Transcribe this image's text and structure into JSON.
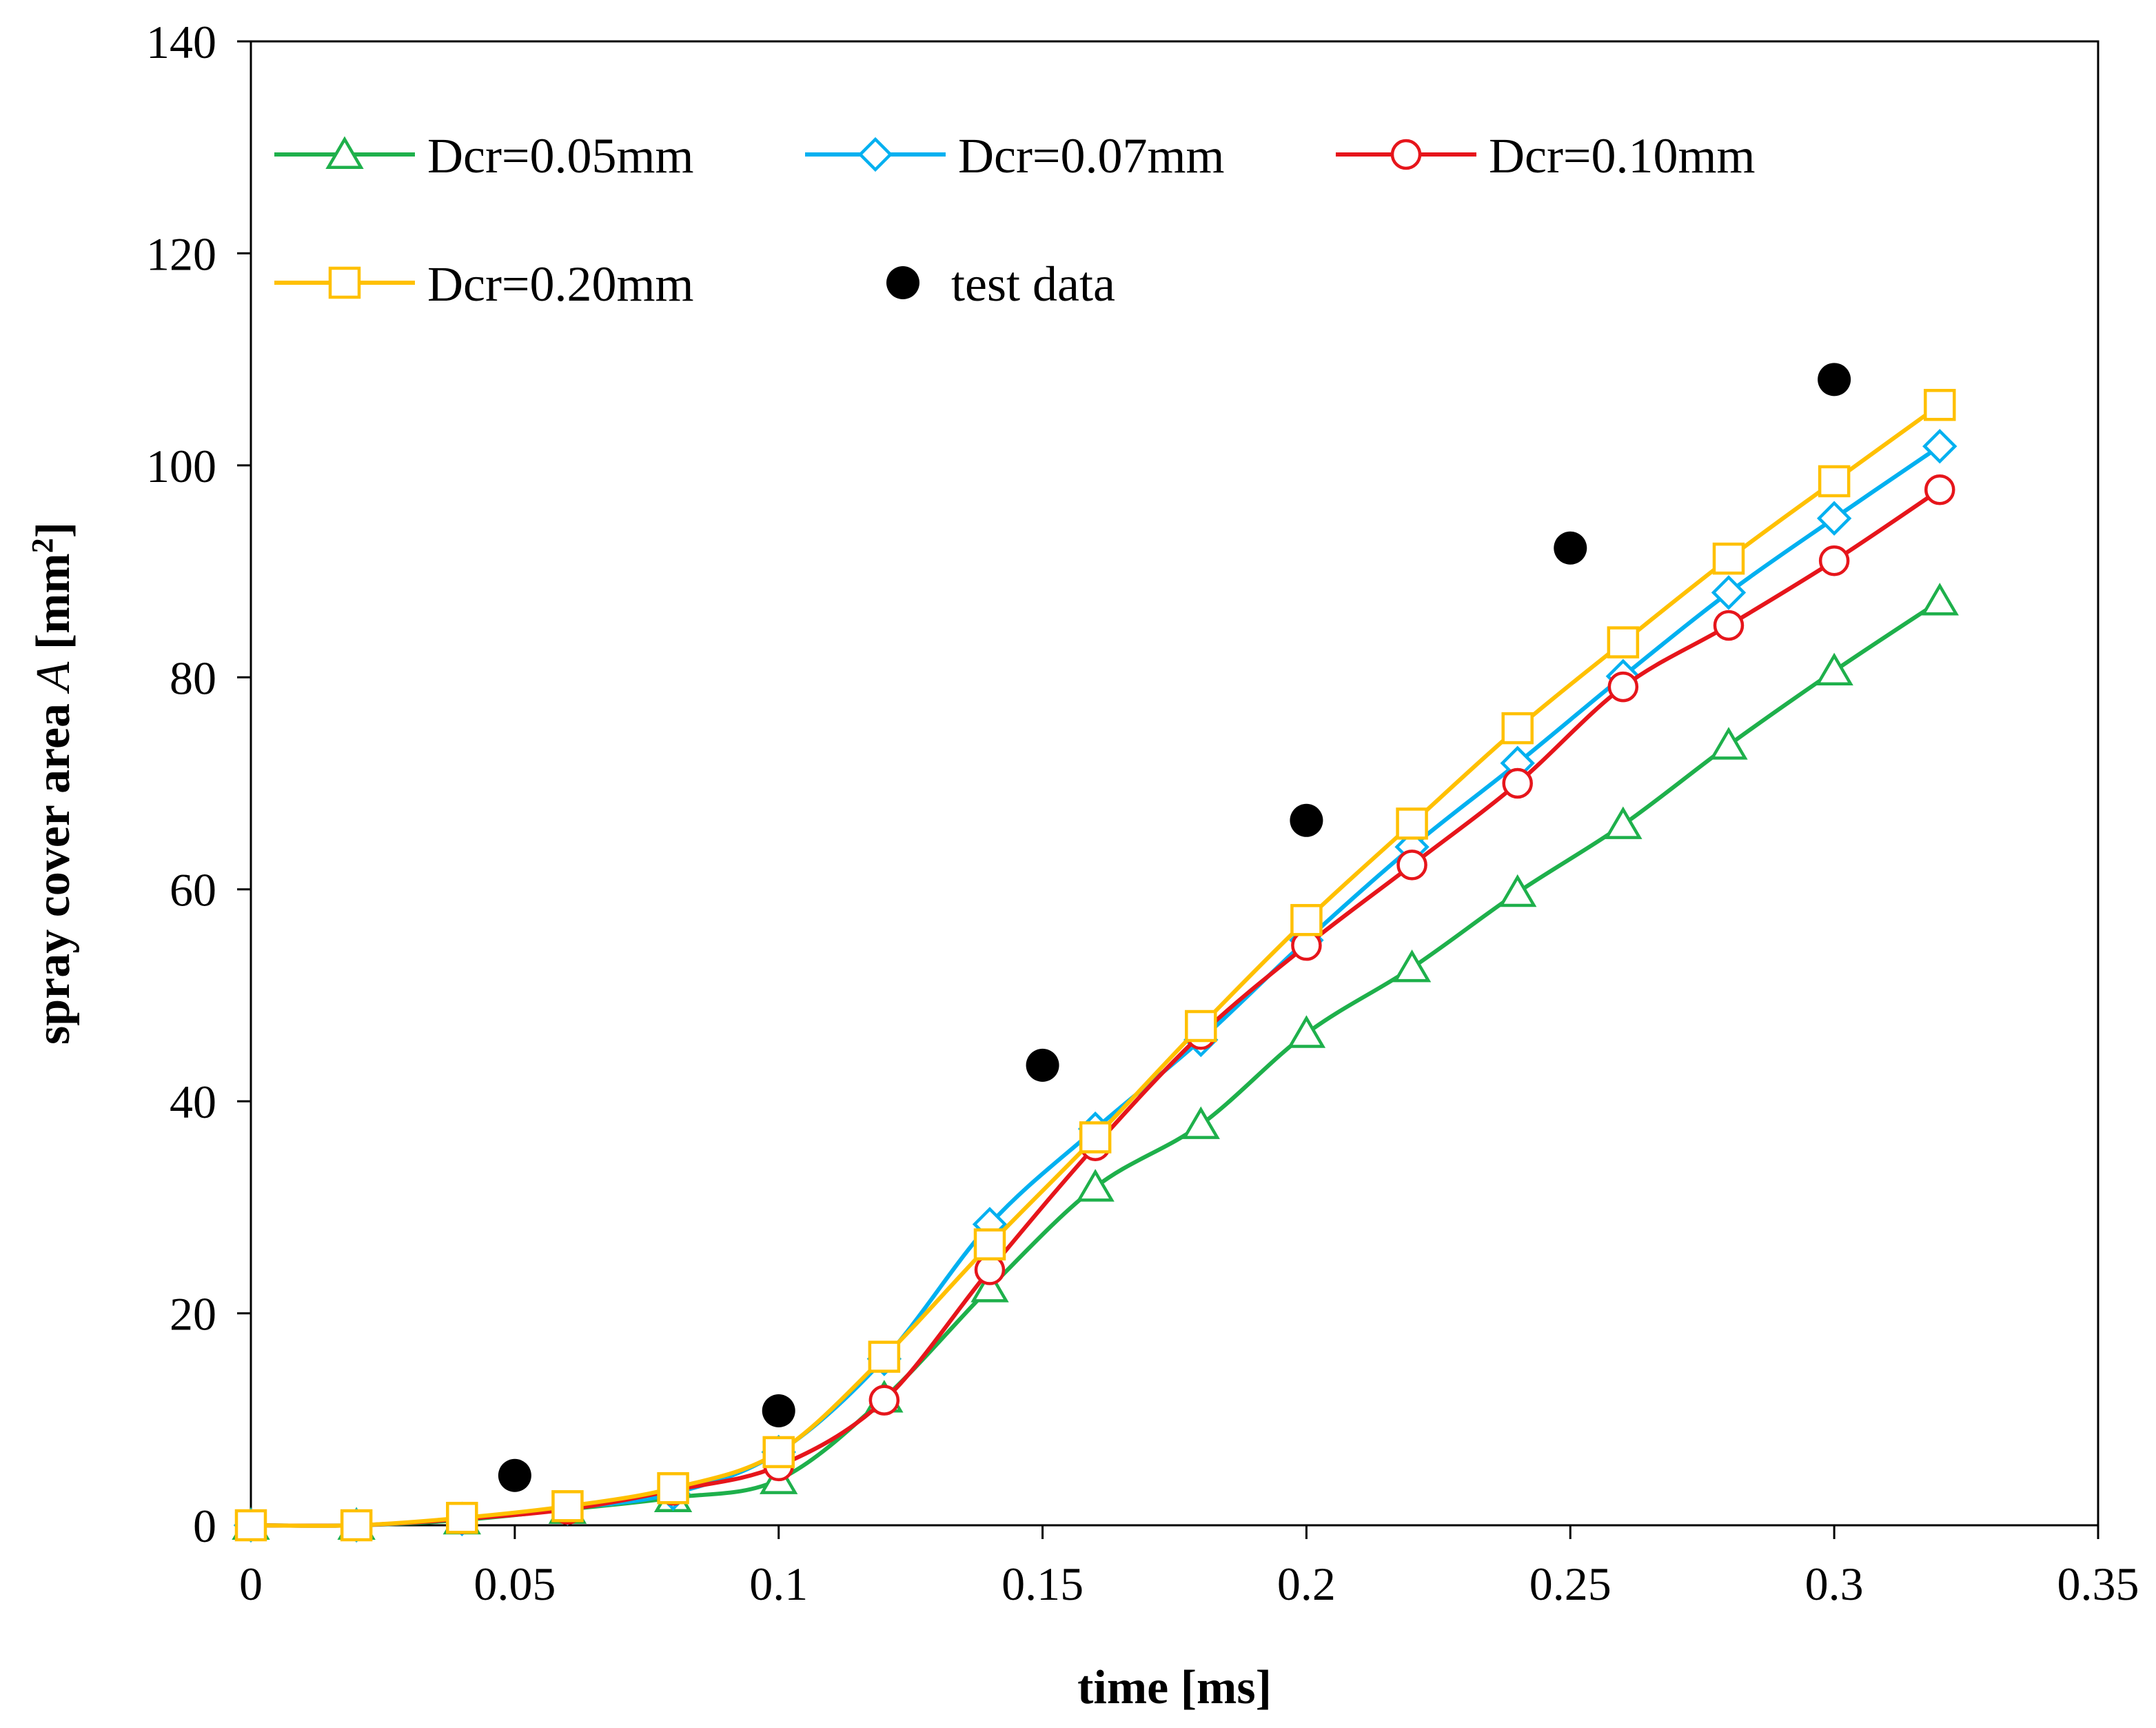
{
  "chart_data": {
    "type": "line",
    "title": "",
    "xlabel": "time [ms]",
    "ylabel_parts": {
      "pre": "spray cover area ",
      "italic": "A",
      "post_a": " [mm",
      "superscript": "2",
      "post_b": "]"
    },
    "xlim": [
      0,
      0.35
    ],
    "ylim": [
      0,
      140
    ],
    "xticks": [
      0,
      0.05,
      0.1,
      0.15,
      0.2,
      0.25,
      0.3,
      0.35
    ],
    "xtick_labels": [
      "0",
      "0.05",
      "0.1",
      "0.15",
      "0.2",
      "0.25",
      "0.3",
      "0.35"
    ],
    "yticks": [
      0,
      20,
      40,
      60,
      80,
      100,
      120,
      140
    ],
    "ytick_labels": [
      "0",
      "20",
      "40",
      "60",
      "80",
      "100",
      "120",
      "140"
    ],
    "grid": false,
    "legend_position": "top-left, inside plot, 3 columns",
    "x": [
      0,
      0.02,
      0.04,
      0.06,
      0.08,
      0.1,
      0.12,
      0.14,
      0.16,
      0.18,
      0.2,
      0.22,
      0.24,
      0.26,
      0.28,
      0.3,
      0.32
    ],
    "series": [
      {
        "name": "Dcr=0.05mm",
        "color": "#1EB04B",
        "marker": "triangle",
        "values": [
          0,
          0,
          0.5,
          1.5,
          2.6,
          4.3,
          12.0,
          22.4,
          31.9,
          37.8,
          46.4,
          52.6,
          59.7,
          66.1,
          73.6,
          80.6,
          87.2
        ]
      },
      {
        "name": "Dcr=0.07mm",
        "color": "#00B0F0",
        "marker": "diamond",
        "values": [
          0,
          0,
          0.6,
          1.6,
          3.0,
          6.9,
          15.7,
          28.4,
          37.4,
          45.8,
          55.2,
          64.0,
          71.9,
          80.1,
          88.0,
          95.0,
          101.8
        ]
      },
      {
        "name": "Dcr=0.10mm",
        "color": "#E6151B",
        "marker": "circle",
        "values": [
          0,
          0,
          0.6,
          1.5,
          3.3,
          5.6,
          11.8,
          24.1,
          35.8,
          46.3,
          54.7,
          62.3,
          70.0,
          79.1,
          84.9,
          91.0,
          97.7
        ]
      },
      {
        "name": "Dcr=0.20mm",
        "color": "#FFC000",
        "marker": "square",
        "values": [
          0,
          0,
          0.7,
          1.8,
          3.5,
          6.9,
          15.9,
          26.5,
          36.6,
          47.1,
          57.1,
          66.2,
          75.2,
          83.3,
          91.2,
          98.5,
          105.7
        ]
      }
    ],
    "scatter": {
      "name": "test data",
      "color": "#000000",
      "marker": "filled-circle",
      "x": [
        0.05,
        0.1,
        0.15,
        0.2,
        0.25,
        0.3
      ],
      "y": [
        4.7,
        10.8,
        43.4,
        66.5,
        92.2,
        108.1
      ]
    }
  }
}
